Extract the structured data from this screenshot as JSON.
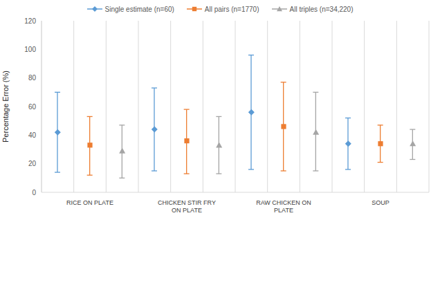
{
  "chart_data": {
    "type": "errorbar",
    "y_label": "Percentage Error (%)",
    "categories": [
      "RICE ON PLATE",
      "CHICKEN STIR FRY ON PLATE",
      "RAW CHICKEN ON PLATE",
      "SOUP"
    ],
    "ylim": [
      0,
      120
    ],
    "yticks": [
      0,
      20,
      40,
      60,
      80,
      100,
      120
    ],
    "grid": true,
    "legend": "top",
    "series": [
      {
        "name": "Single estimate (n=60)",
        "color": "#5B9BD5",
        "marker": "diamond",
        "values": [
          42,
          44,
          56,
          34
        ],
        "lower": [
          14,
          15,
          16,
          16
        ],
        "upper": [
          70,
          73,
          96,
          52
        ]
      },
      {
        "name": "All pairs (n=1770)",
        "color": "#ED7D31",
        "marker": "square",
        "values": [
          33,
          36,
          46,
          34
        ],
        "lower": [
          12,
          13,
          15,
          21
        ],
        "upper": [
          53,
          58,
          77,
          47
        ]
      },
      {
        "name": "All triples (n=34,220)",
        "color": "#A5A5A5",
        "marker": "triangle",
        "values": [
          29,
          33,
          42,
          34
        ],
        "lower": [
          10,
          13,
          15,
          23
        ],
        "upper": [
          47,
          53,
          70,
          44
        ]
      }
    ]
  }
}
